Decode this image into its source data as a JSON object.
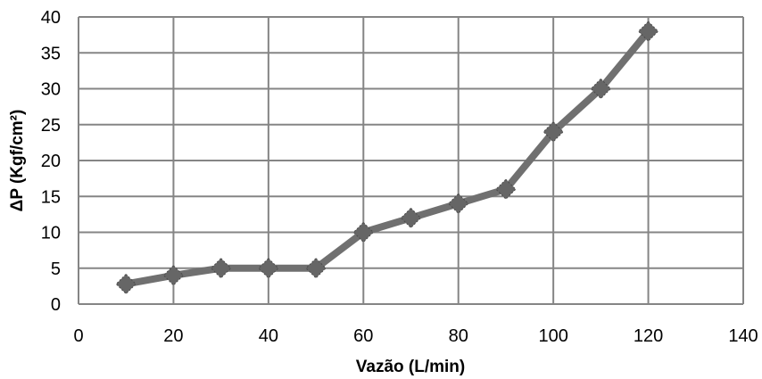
{
  "chart_data": {
    "type": "scatter",
    "xlabel": "Vazão (L/min)",
    "ylabel": "ΔP (Kgf/cm²)",
    "xlim": [
      0,
      140
    ],
    "ylim": [
      0,
      40
    ],
    "x_ticks": [
      0,
      20,
      40,
      60,
      80,
      100,
      120,
      140
    ],
    "y_ticks": [
      0,
      5,
      10,
      15,
      20,
      25,
      30,
      35,
      40
    ],
    "grid": true,
    "line_color": "#707070",
    "marker_color": "#666666",
    "series": [
      {
        "x": [
          10,
          20,
          30,
          40,
          50,
          60,
          70,
          80,
          90,
          100,
          110,
          120
        ],
        "y": [
          2.8,
          4,
          5,
          5,
          5,
          10,
          12,
          14,
          16,
          24,
          30,
          38
        ]
      }
    ]
  }
}
